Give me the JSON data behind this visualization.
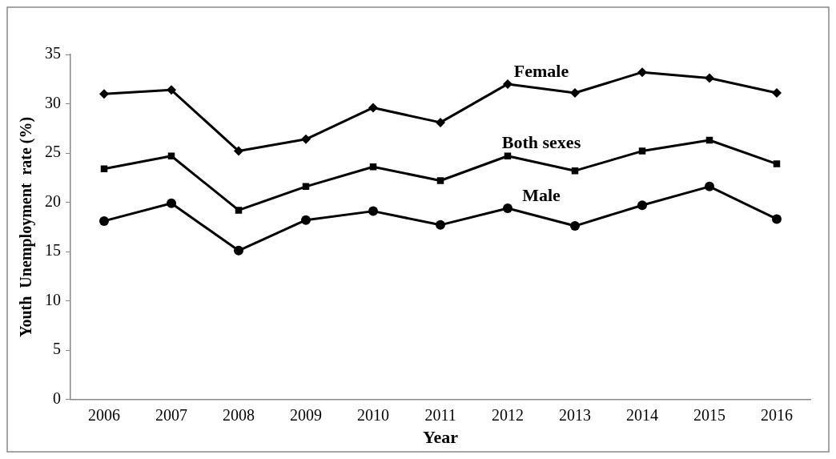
{
  "chart_data": {
    "type": "line",
    "xlabel": "Year",
    "ylabel": "Youth  Unemployment  rate (%)",
    "categories": [
      "2006",
      "2007",
      "2008",
      "2009",
      "2010",
      "2011",
      "2012",
      "2013",
      "2014",
      "2015",
      "2016"
    ],
    "ylim": [
      0,
      35
    ],
    "yticks": [
      0,
      5,
      10,
      15,
      20,
      25,
      30,
      35
    ],
    "grid": false,
    "legend": false,
    "series": [
      {
        "name": "Female",
        "color": "#000000",
        "marker": "diamond",
        "values": [
          31.0,
          31.4,
          25.2,
          26.4,
          29.6,
          28.1,
          32.0,
          31.1,
          33.2,
          32.6,
          31.1
        ]
      },
      {
        "name": "Both sexes",
        "color": "#000000",
        "marker": "square",
        "values": [
          23.4,
          24.7,
          19.2,
          21.6,
          23.6,
          22.2,
          24.7,
          23.2,
          25.2,
          26.3,
          23.9
        ]
      },
      {
        "name": "Male",
        "color": "#000000",
        "marker": "circle",
        "values": [
          18.1,
          19.9,
          15.1,
          18.2,
          19.1,
          17.7,
          19.4,
          17.6,
          19.7,
          21.6,
          18.3
        ]
      }
    ]
  }
}
